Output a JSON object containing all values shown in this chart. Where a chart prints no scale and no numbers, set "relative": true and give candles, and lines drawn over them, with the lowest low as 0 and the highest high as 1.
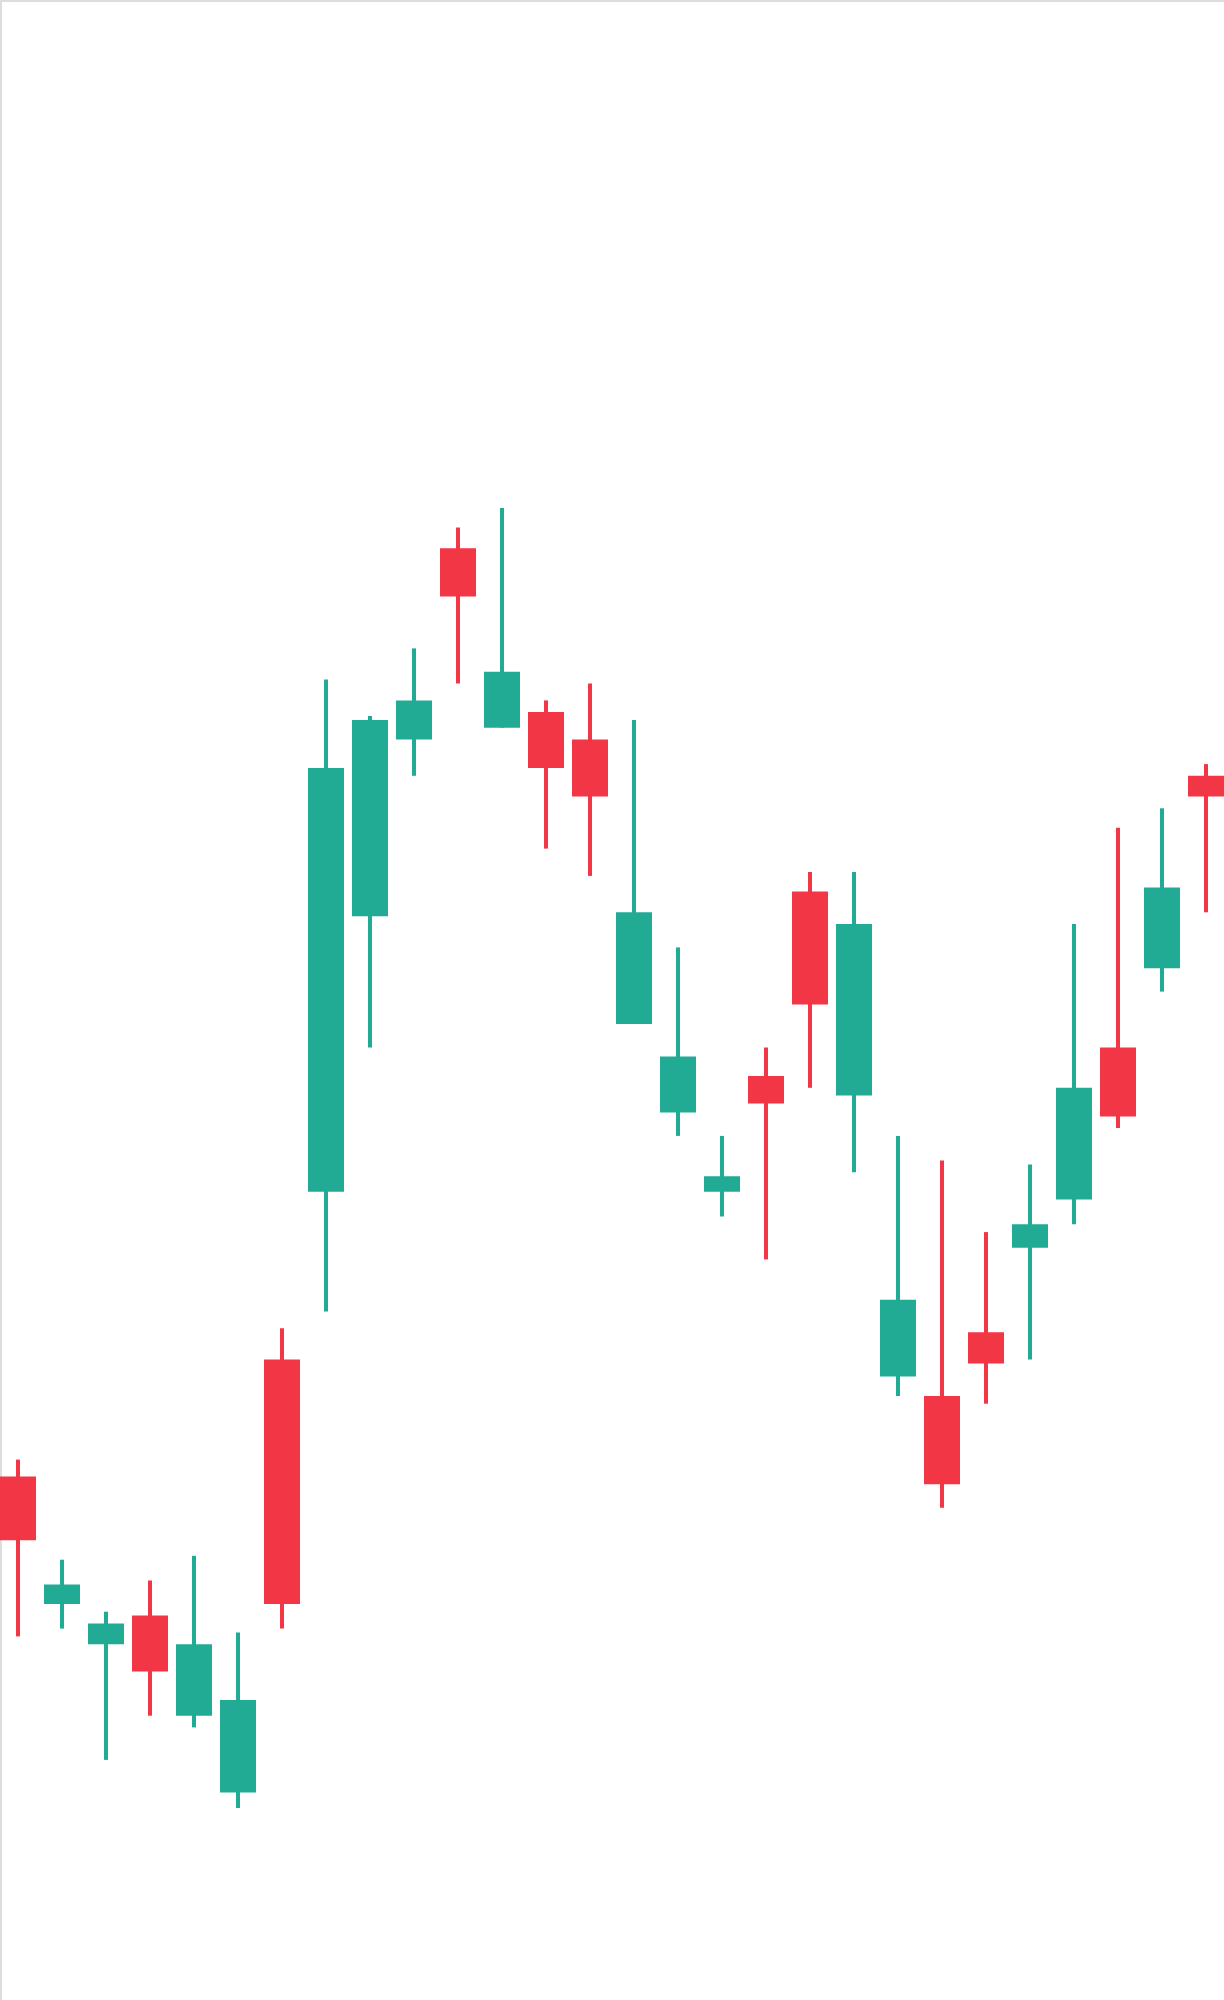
{
  "chart_data": {
    "type": "candlestick",
    "relative": true,
    "categories": [
      null,
      null,
      null,
      null,
      null,
      null,
      null,
      null,
      null,
      null,
      null,
      null,
      null,
      null,
      null,
      null,
      null,
      null,
      null,
      null,
      null,
      null,
      null,
      null,
      null,
      null,
      null,
      null
    ],
    "ohlc": [
      [
        0.255,
        0.268,
        0.132,
        0.206
      ],
      [
        0.157,
        0.191,
        0.138,
        0.172
      ],
      [
        0.126,
        0.151,
        0.037,
        0.142
      ],
      [
        0.148,
        0.175,
        0.071,
        0.105
      ],
      [
        0.071,
        0.194,
        0.062,
        0.126
      ],
      [
        0.012,
        0.135,
        0,
        0.083
      ],
      [
        0.345,
        0.369,
        0.138,
        0.157
      ],
      [
        0.474,
        0.868,
        0.382,
        0.8
      ],
      [
        0.686,
        0.84,
        0.585,
        0.837
      ],
      [
        0.822,
        0.892,
        0.794,
        0.852
      ],
      [
        0.969,
        0.985,
        0.865,
        0.932
      ],
      [
        0.831,
        1,
        0.831,
        0.874
      ],
      [
        0.843,
        0.852,
        0.738,
        0.8
      ],
      [
        0.822,
        0.865,
        0.717,
        0.778
      ],
      [
        0.603,
        0.837,
        0.603,
        0.689
      ],
      [
        0.535,
        0.662,
        0.517,
        0.578
      ],
      [
        0.474,
        0.517,
        0.455,
        0.486
      ],
      [
        0.563,
        0.585,
        0.422,
        0.542
      ],
      [
        0.705,
        0.72,
        0.554,
        0.618
      ],
      [
        0.548,
        0.72,
        0.489,
        0.68
      ],
      [
        0.332,
        0.517,
        0.317,
        0.391
      ],
      [
        0.317,
        0.498,
        0.231,
        0.249
      ],
      [
        0.366,
        0.443,
        0.311,
        0.342
      ],
      [
        0.431,
        0.495,
        0.345,
        0.449
      ],
      [
        0.468,
        0.68,
        0.449,
        0.554
      ],
      [
        0.585,
        0.754,
        0.523,
        0.532
      ],
      [
        0.646,
        0.769,
        0.628,
        0.708
      ],
      [
        0.794,
        0.803,
        0.689,
        0.778
      ]
    ],
    "colors": [
      "#f23645",
      "#22ab94",
      "#22ab94",
      "#f23645",
      "#22ab94",
      "#22ab94",
      "#f23645",
      "#22ab94",
      "#22ab94",
      "#22ab94",
      "#f23645",
      "#22ab94",
      "#f23645",
      "#f23645",
      "#22ab94",
      "#22ab94",
      "#22ab94",
      "#f23645",
      "#f23645",
      "#22ab94",
      "#22ab94",
      "#f23645",
      "#f23645",
      "#22ab94",
      "#22ab94",
      "#f23645",
      "#22ab94",
      "#f23645"
    ]
  }
}
